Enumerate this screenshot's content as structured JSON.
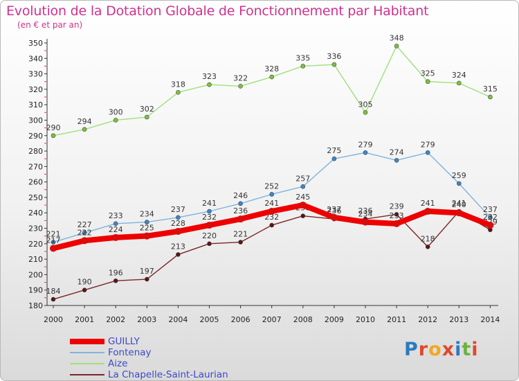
{
  "title": "Evolution de la Dotation Globale de Fonctionnement par Habitant",
  "subtitle": "(en € et par an)",
  "brand": {
    "name": "Proxiti",
    "letter_colors": [
      "#2a7bbf",
      "#e0472d",
      "#f2a81d",
      "#e0472d",
      "#2a7bbf",
      "#6cb33f",
      "#e0472d"
    ]
  },
  "chart_data": {
    "type": "line",
    "x": [
      "2000",
      "2001",
      "2002",
      "2003",
      "2004",
      "2005",
      "2006",
      "2007",
      "2008",
      "2009",
      "2010",
      "2011",
      "2012",
      "2013",
      "2014"
    ],
    "ylim": [
      180,
      350
    ],
    "yticks": [
      180,
      190,
      200,
      210,
      220,
      230,
      240,
      250,
      260,
      270,
      280,
      290,
      300,
      310,
      320,
      330,
      340,
      350
    ],
    "grid": "none",
    "legend_position": "bottom",
    "series": [
      {
        "name": "GUILLY",
        "color": "#ee0000",
        "point_color": "#d11010",
        "style": "bold",
        "values": [
          217,
          222,
          224,
          225,
          228,
          232,
          236,
          241,
          245,
          237,
          234,
          233,
          241,
          240,
          232
        ]
      },
      {
        "name": "Fontenay",
        "color": "#7fb3dd",
        "point_color": "#3b87c8",
        "style": "thin",
        "values": [
          221,
          227,
          233,
          234,
          237,
          241,
          246,
          252,
          257,
          275,
          279,
          274,
          279,
          259,
          237
        ]
      },
      {
        "name": "Aize",
        "color": "#9fe07a",
        "point_color": "#7bc43d",
        "style": "thin",
        "values": [
          290,
          294,
          300,
          302,
          318,
          323,
          322,
          328,
          335,
          336,
          305,
          348,
          325,
          324,
          315
        ]
      },
      {
        "name": "La Chapelle-Saint-Laurian",
        "color": "#7a2626",
        "point_color": "#5a1414",
        "style": "thin",
        "values": [
          184,
          190,
          196,
          197,
          213,
          220,
          221,
          232,
          238,
          236,
          236,
          239,
          218,
          241,
          229
        ]
      }
    ]
  }
}
